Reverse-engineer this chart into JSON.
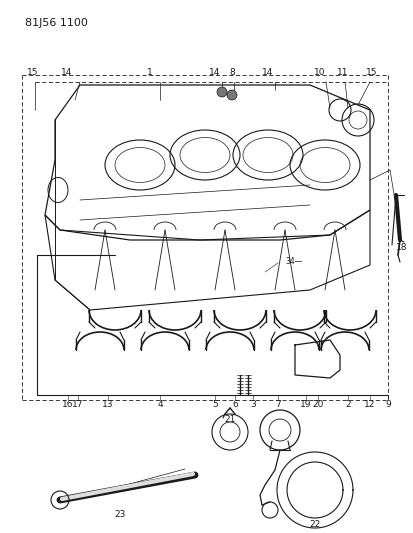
{
  "title_code": "81J56 1100",
  "bg_color": "#ffffff",
  "lc": "#1a1a1a",
  "fig_width": 4.14,
  "fig_height": 5.33,
  "dpi": 100
}
